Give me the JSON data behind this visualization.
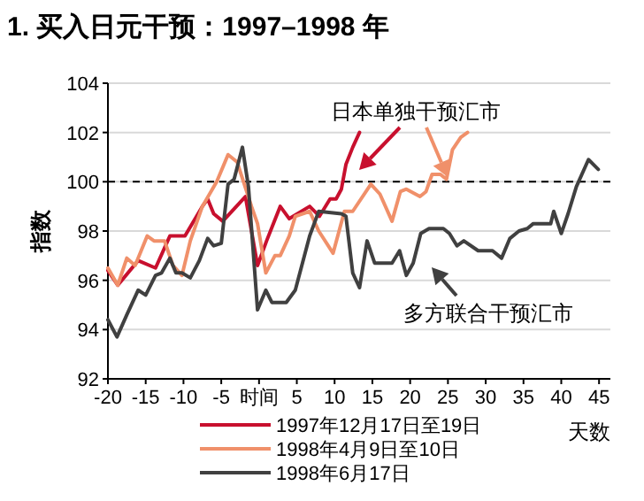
{
  "chart_data": {
    "type": "line",
    "title": "1. 买入日元干预：1997–1998 年",
    "xlabel": "天数",
    "ylabel": "指数",
    "xlim": [
      -20,
      46.5
    ],
    "xticks": [
      -20,
      -15,
      -10,
      -5,
      {
        "value": 0,
        "label": "时间"
      },
      5,
      10,
      15,
      20,
      25,
      30,
      35,
      40,
      45
    ],
    "ylim": [
      92,
      104
    ],
    "yticks": [
      92,
      94,
      96,
      98,
      100,
      102,
      104
    ],
    "grid": "y",
    "legend": "bottom",
    "line_style": "solid",
    "ref_lines": [
      {
        "axis": "y",
        "value": 100,
        "color": "#000000",
        "line_style": "dashed"
      }
    ],
    "annotations": [
      "日本单独干预汇市",
      "多方联合干预汇市"
    ],
    "series": [
      {
        "name": "1997年12月17日至19日",
        "color": "#c8102e",
        "x": [
          -20,
          -18.7,
          -16,
          -13.7,
          -11.8,
          -9.8,
          -7.5,
          -6.8,
          -6,
          -4.8,
          -1.8,
          -0.2,
          1,
          2.8,
          4,
          6.7,
          8,
          9.4,
          10.2,
          10.9,
          11.5,
          12.4,
          13.3
        ],
        "values": [
          96.4,
          95.8,
          96.8,
          96.5,
          97.8,
          97.8,
          99.0,
          99.3,
          98.7,
          98.4,
          99.4,
          96.6,
          97.6,
          99.0,
          98.5,
          99.0,
          98.6,
          99.3,
          99.3,
          99.7,
          100.7,
          101.4,
          102.0
        ]
      },
      {
        "name": "1998年4月9日至10日",
        "color": "#f0906a",
        "x": [
          -20,
          -18.7,
          -17.5,
          -16.4,
          -14.8,
          -13.9,
          -12.5,
          -11.4,
          -10.2,
          -9.1,
          -7.5,
          -5.6,
          -4.1,
          -2.9,
          -1,
          -0.2,
          0.9,
          2.1,
          2.8,
          4,
          4.8,
          6.7,
          7.9,
          9.8,
          11.3,
          12.4,
          14.8,
          16.0,
          17.6,
          18.7,
          19.5,
          21.3,
          22.1,
          22.9,
          24,
          24.8,
          25.6,
          26.7,
          27.6
        ],
        "values": [
          96.5,
          95.8,
          96.9,
          96.6,
          97.8,
          97.6,
          97.6,
          96.6,
          96.2,
          97.6,
          99.0,
          100.0,
          101.1,
          100.8,
          99.0,
          98.3,
          96.3,
          97.0,
          97.0,
          97.8,
          98.6,
          98.8,
          98.0,
          97.1,
          98.8,
          98.8,
          99.9,
          99.5,
          98.4,
          99.6,
          99.7,
          99.4,
          99.6,
          100.3,
          100.3,
          100.1,
          101.3,
          101.8,
          102.0
        ]
      },
      {
        "name": "1998年6月17日",
        "color": "#404040",
        "x": [
          -20,
          -18.8,
          -17.5,
          -16,
          -15,
          -13.7,
          -12.9,
          -11.8,
          -11,
          -10.2,
          -9.1,
          -7.9,
          -6.8,
          -6,
          -5,
          -4.1,
          -3.3,
          -2.2,
          -1.4,
          -0.2,
          0.9,
          1.7,
          3.6,
          4.8,
          6.7,
          7.9,
          10.9,
          11.5,
          12.4,
          13.3,
          14.3,
          15.3,
          17.6,
          18.6,
          19.5,
          20.4,
          21.4,
          22.5,
          24.4,
          25.2,
          26.2,
          27.1,
          29,
          30.9,
          32.1,
          33.2,
          34.4,
          35.5,
          36.3,
          38.6,
          39,
          40,
          40.9,
          42,
          43.6,
          44.9
        ],
        "values": [
          94.4,
          93.7,
          94.6,
          95.6,
          95.4,
          96.2,
          96.3,
          96.9,
          96.3,
          96.3,
          96.1,
          96.8,
          97.7,
          97.4,
          97.5,
          99.9,
          100.1,
          101.4,
          99.8,
          94.8,
          95.6,
          95.1,
          95.1,
          95.6,
          97.8,
          98.8,
          98.7,
          98.6,
          96.3,
          95.7,
          97.6,
          96.7,
          96.7,
          97.2,
          96.2,
          96.7,
          97.9,
          98.1,
          98.1,
          97.9,
          97.4,
          97.6,
          97.2,
          97.2,
          96.9,
          97.7,
          98.0,
          98.1,
          98.3,
          98.3,
          98.8,
          97.9,
          98.7,
          99.8,
          100.9,
          100.5
        ]
      }
    ]
  }
}
